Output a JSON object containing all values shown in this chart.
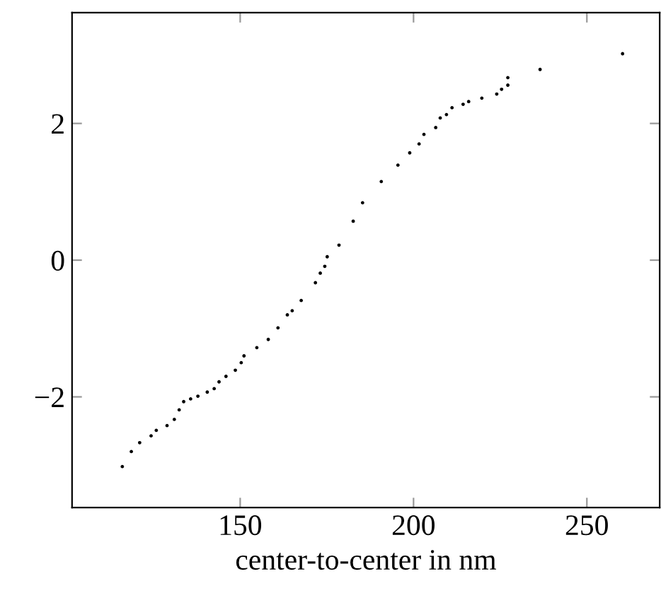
{
  "chart_data": {
    "type": "scatter",
    "xlabel": "center-to-center in nm",
    "x": [
      116.0,
      118.6,
      121.0,
      124.3,
      125.8,
      128.9,
      131.0,
      132.4,
      133.7,
      135.7,
      137.8,
      140.5,
      142.5,
      143.9,
      145.9,
      148.6,
      150.3,
      151.1,
      154.8,
      158.1,
      160.9,
      163.6,
      165.0,
      167.6,
      171.7,
      173.1,
      174.4,
      175.1,
      178.5,
      182.6,
      185.3,
      190.7,
      195.5,
      198.9,
      201.6,
      203.0,
      206.4,
      207.7,
      209.5,
      211.1,
      214.3,
      215.9,
      219.7,
      224.0,
      225.4,
      227.2,
      227.2,
      236.5,
      260.3
    ],
    "values": [
      -3.02,
      -2.8,
      -2.67,
      -2.57,
      -2.49,
      -2.42,
      -2.33,
      -2.19,
      -2.07,
      -2.03,
      -1.99,
      -1.93,
      -1.88,
      -1.78,
      -1.7,
      -1.61,
      -1.5,
      -1.4,
      -1.28,
      -1.16,
      -0.99,
      -0.8,
      -0.74,
      -0.59,
      -0.33,
      -0.19,
      -0.09,
      0.05,
      0.22,
      0.57,
      0.84,
      1.15,
      1.39,
      1.57,
      1.7,
      1.84,
      1.94,
      2.08,
      2.13,
      2.23,
      2.28,
      2.32,
      2.37,
      2.43,
      2.5,
      2.56,
      2.67,
      2.79,
      3.02
    ],
    "color": "#000000",
    "marker": "circle",
    "xlim": [
      101.5,
      271
    ],
    "ylim": [
      -3.62,
      3.62
    ],
    "xticks": [
      150,
      200,
      250
    ],
    "yticks": [
      {
        "value": -2,
        "label": "−2"
      },
      0,
      2
    ],
    "grid": false
  }
}
